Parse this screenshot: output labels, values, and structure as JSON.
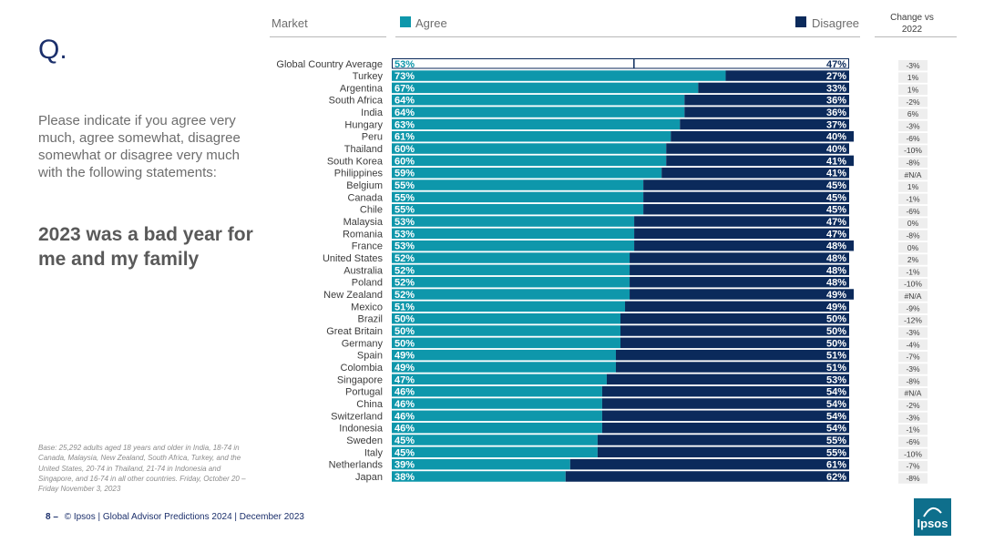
{
  "question_mark": "Q.",
  "question": "Please indicate if you agree very much, agree somewhat, disagree somewhat or disagree very much with the following statements:",
  "statement": "2023 was a bad year for me and my family",
  "base_note": "Base: 25,292 adults aged 18 years and older in India, 18-74 in Canada, Malaysia, New Zealand, South Africa, Turkey, and the United States, 20-74 in Thailand, 21-74 in Indonesia and Singapore, and 16-74 in all other countries. Friday, October 20 – Friday November 3, 2023",
  "footer": {
    "page": "8",
    "dash": "–",
    "text": "© Ipsos | Global Advisor Predictions 2024 | December 2023"
  },
  "header": {
    "market": "Market",
    "agree": "Agree",
    "disagree": "Disagree",
    "change": "Change vs 2022"
  },
  "logo": {
    "text": "Ipsos"
  },
  "colors": {
    "agree": "#0e97ab",
    "disagree": "#0b2a5b",
    "average_border": "#0b2a5b",
    "text_dark": "#3c3c3c"
  },
  "chart_data": {
    "type": "bar",
    "orientation": "horizontal",
    "stacked": true,
    "title": "2023 was a bad year for me and my family",
    "categories": [
      "Global Country Average",
      "Turkey",
      "Argentina",
      "South Africa",
      "India",
      "Hungary",
      "Peru",
      "Thailand",
      "South Korea",
      "Philippines",
      "Belgium",
      "Canada",
      "Chile",
      "Malaysia",
      "Romania",
      "France",
      "United States",
      "Australia",
      "Poland",
      "New Zealand",
      "Mexico",
      "Brazil",
      "Great Britain",
      "Germany",
      "Spain",
      "Colombia",
      "Singapore",
      "Portugal",
      "China",
      "Switzerland",
      "Indonesia",
      "Sweden",
      "Italy",
      "Netherlands",
      "Japan"
    ],
    "series": [
      {
        "name": "Agree",
        "values": [
          53,
          73,
          67,
          64,
          64,
          63,
          61,
          60,
          60,
          59,
          55,
          55,
          55,
          53,
          53,
          53,
          52,
          52,
          52,
          52,
          51,
          50,
          50,
          50,
          49,
          49,
          47,
          46,
          46,
          46,
          46,
          45,
          45,
          39,
          38
        ]
      },
      {
        "name": "Disagree",
        "values": [
          47,
          27,
          33,
          36,
          36,
          37,
          40,
          40,
          41,
          41,
          45,
          45,
          45,
          47,
          47,
          48,
          48,
          48,
          48,
          49,
          49,
          50,
          50,
          50,
          51,
          51,
          53,
          54,
          54,
          54,
          54,
          55,
          55,
          61,
          62
        ]
      }
    ],
    "change_vs_2022": [
      "-3%",
      "1%",
      "1%",
      "-2%",
      "6%",
      "-3%",
      "-6%",
      "-10%",
      "-8%",
      "#N/A",
      "1%",
      "-1%",
      "-6%",
      "0%",
      "-8%",
      "0%",
      "2%",
      "-1%",
      "-10%",
      "#N/A",
      "-9%",
      "-12%",
      "-3%",
      "-4%",
      "-7%",
      "-3%",
      "-8%",
      "#N/A",
      "-2%",
      "-3%",
      "-1%",
      "-6%",
      "-10%",
      "-7%",
      "-8%"
    ],
    "unit": "%",
    "xlim": [
      0,
      100
    ]
  }
}
